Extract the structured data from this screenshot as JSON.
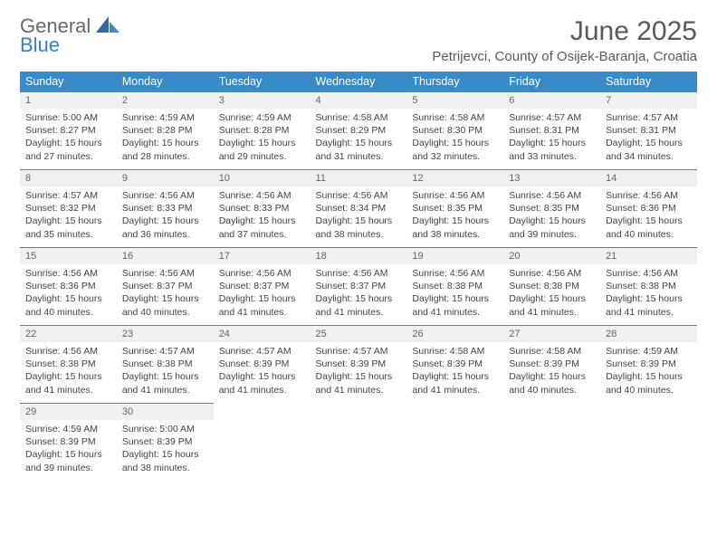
{
  "logo": {
    "line1": "General",
    "line2": "Blue"
  },
  "title": "June 2025",
  "location": "Petrijevci, County of Osijek-Baranja, Croatia",
  "colors": {
    "header_bg": "#3a8ac8",
    "header_text": "#ffffff",
    "daynum_bg": "#eef0f2",
    "border": "#3a8ac8",
    "body_text": "#444444",
    "title_text": "#5a5a5a",
    "logo_gray": "#6a6a6a",
    "logo_blue": "#3a7fc4"
  },
  "weekdays": [
    "Sunday",
    "Monday",
    "Tuesday",
    "Wednesday",
    "Thursday",
    "Friday",
    "Saturday"
  ],
  "days": [
    {
      "n": "1",
      "sr": "5:00 AM",
      "ss": "8:27 PM",
      "dl": "15 hours and 27 minutes."
    },
    {
      "n": "2",
      "sr": "4:59 AM",
      "ss": "8:28 PM",
      "dl": "15 hours and 28 minutes."
    },
    {
      "n": "3",
      "sr": "4:59 AM",
      "ss": "8:28 PM",
      "dl": "15 hours and 29 minutes."
    },
    {
      "n": "4",
      "sr": "4:58 AM",
      "ss": "8:29 PM",
      "dl": "15 hours and 31 minutes."
    },
    {
      "n": "5",
      "sr": "4:58 AM",
      "ss": "8:30 PM",
      "dl": "15 hours and 32 minutes."
    },
    {
      "n": "6",
      "sr": "4:57 AM",
      "ss": "8:31 PM",
      "dl": "15 hours and 33 minutes."
    },
    {
      "n": "7",
      "sr": "4:57 AM",
      "ss": "8:31 PM",
      "dl": "15 hours and 34 minutes."
    },
    {
      "n": "8",
      "sr": "4:57 AM",
      "ss": "8:32 PM",
      "dl": "15 hours and 35 minutes."
    },
    {
      "n": "9",
      "sr": "4:56 AM",
      "ss": "8:33 PM",
      "dl": "15 hours and 36 minutes."
    },
    {
      "n": "10",
      "sr": "4:56 AM",
      "ss": "8:33 PM",
      "dl": "15 hours and 37 minutes."
    },
    {
      "n": "11",
      "sr": "4:56 AM",
      "ss": "8:34 PM",
      "dl": "15 hours and 38 minutes."
    },
    {
      "n": "12",
      "sr": "4:56 AM",
      "ss": "8:35 PM",
      "dl": "15 hours and 38 minutes."
    },
    {
      "n": "13",
      "sr": "4:56 AM",
      "ss": "8:35 PM",
      "dl": "15 hours and 39 minutes."
    },
    {
      "n": "14",
      "sr": "4:56 AM",
      "ss": "8:36 PM",
      "dl": "15 hours and 40 minutes."
    },
    {
      "n": "15",
      "sr": "4:56 AM",
      "ss": "8:36 PM",
      "dl": "15 hours and 40 minutes."
    },
    {
      "n": "16",
      "sr": "4:56 AM",
      "ss": "8:37 PM",
      "dl": "15 hours and 40 minutes."
    },
    {
      "n": "17",
      "sr": "4:56 AM",
      "ss": "8:37 PM",
      "dl": "15 hours and 41 minutes."
    },
    {
      "n": "18",
      "sr": "4:56 AM",
      "ss": "8:37 PM",
      "dl": "15 hours and 41 minutes."
    },
    {
      "n": "19",
      "sr": "4:56 AM",
      "ss": "8:38 PM",
      "dl": "15 hours and 41 minutes."
    },
    {
      "n": "20",
      "sr": "4:56 AM",
      "ss": "8:38 PM",
      "dl": "15 hours and 41 minutes."
    },
    {
      "n": "21",
      "sr": "4:56 AM",
      "ss": "8:38 PM",
      "dl": "15 hours and 41 minutes."
    },
    {
      "n": "22",
      "sr": "4:56 AM",
      "ss": "8:38 PM",
      "dl": "15 hours and 41 minutes."
    },
    {
      "n": "23",
      "sr": "4:57 AM",
      "ss": "8:38 PM",
      "dl": "15 hours and 41 minutes."
    },
    {
      "n": "24",
      "sr": "4:57 AM",
      "ss": "8:39 PM",
      "dl": "15 hours and 41 minutes."
    },
    {
      "n": "25",
      "sr": "4:57 AM",
      "ss": "8:39 PM",
      "dl": "15 hours and 41 minutes."
    },
    {
      "n": "26",
      "sr": "4:58 AM",
      "ss": "8:39 PM",
      "dl": "15 hours and 41 minutes."
    },
    {
      "n": "27",
      "sr": "4:58 AM",
      "ss": "8:39 PM",
      "dl": "15 hours and 40 minutes."
    },
    {
      "n": "28",
      "sr": "4:59 AM",
      "ss": "8:39 PM",
      "dl": "15 hours and 40 minutes."
    },
    {
      "n": "29",
      "sr": "4:59 AM",
      "ss": "8:39 PM",
      "dl": "15 hours and 39 minutes."
    },
    {
      "n": "30",
      "sr": "5:00 AM",
      "ss": "8:39 PM",
      "dl": "15 hours and 38 minutes."
    }
  ],
  "labels": {
    "sunrise": "Sunrise:",
    "sunset": "Sunset:",
    "daylight": "Daylight:"
  },
  "layout": {
    "start_weekday": 0,
    "rows": 5,
    "cols": 7
  }
}
